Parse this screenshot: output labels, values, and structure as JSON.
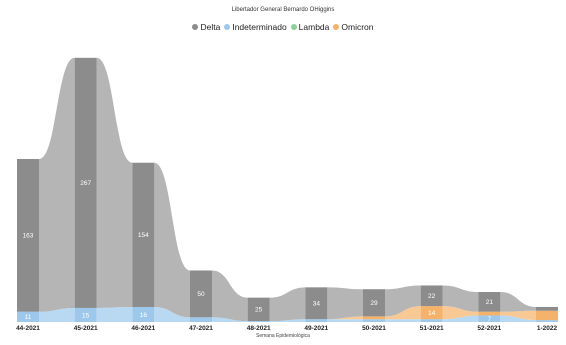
{
  "chart_data": {
    "type": "bar",
    "title": "Libertador General Bernardo OHiggins",
    "xlabel": "Semana Epidemiológica",
    "ylabel": "",
    "categories": [
      "44-2021",
      "45-2021",
      "46-2021",
      "47-2021",
      "48-2021",
      "49-2021",
      "50-2021",
      "51-2021",
      "52-2021",
      "1-2022"
    ],
    "series": [
      {
        "name": "Delta",
        "color": "#8c8c8c",
        "values": [
          163,
          267,
          154,
          50,
          25,
          34,
          29,
          22,
          21,
          4
        ]
      },
      {
        "name": "Indeterminado",
        "color": "#9dc8ec",
        "values": [
          11,
          15,
          16,
          5,
          1,
          3,
          3,
          3,
          7,
          2
        ]
      },
      {
        "name": "Lambda",
        "color": "#8fd19e",
        "values": [
          0,
          0,
          0,
          0,
          0,
          0,
          0,
          0,
          0,
          0
        ]
      },
      {
        "name": "Omicron",
        "color": "#f5b26b",
        "values": [
          0,
          0,
          0,
          0,
          0,
          0,
          3,
          14,
          4,
          10
        ]
      }
    ],
    "data_labels": [
      {
        "series": "Delta",
        "index": 0,
        "text": "163"
      },
      {
        "series": "Delta",
        "index": 1,
        "text": "267"
      },
      {
        "series": "Delta",
        "index": 2,
        "text": "154"
      },
      {
        "series": "Delta",
        "index": 3,
        "text": "50"
      },
      {
        "series": "Delta",
        "index": 4,
        "text": "25"
      },
      {
        "series": "Delta",
        "index": 5,
        "text": "34"
      },
      {
        "series": "Delta",
        "index": 6,
        "text": "29"
      },
      {
        "series": "Delta",
        "index": 7,
        "text": "22"
      },
      {
        "series": "Delta",
        "index": 8,
        "text": "21"
      },
      {
        "series": "Indeterminado",
        "index": 0,
        "text": "11"
      },
      {
        "series": "Indeterminado",
        "index": 1,
        "text": "15"
      },
      {
        "series": "Indeterminado",
        "index": 2,
        "text": "16"
      },
      {
        "series": "Indeterminado",
        "index": 8,
        "text": "7"
      },
      {
        "series": "Omicron",
        "index": 7,
        "text": "14"
      }
    ],
    "stacked": true,
    "ribbons": true,
    "grid": false,
    "legend_position": "top-center",
    "ylim": [
      0,
      285
    ]
  }
}
